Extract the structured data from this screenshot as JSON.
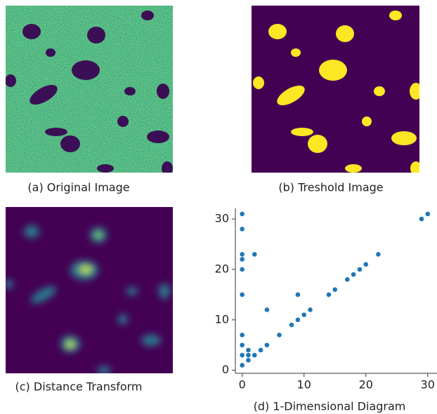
{
  "figure": {
    "captions": [
      "(a) Original Image",
      "(b) Treshold Image",
      "(c) Distance Transform",
      "(d) 1-Dimensional Diagram"
    ]
  },
  "chart_data": {
    "type": "scatter",
    "color": "#1f77b4",
    "x": [
      0,
      0,
      0,
      0,
      0,
      0,
      0,
      0,
      0,
      0,
      2,
      4,
      1,
      1,
      1,
      2,
      3,
      4,
      6,
      8,
      9,
      9,
      10,
      11,
      14,
      15,
      17,
      18,
      19,
      20,
      22,
      29,
      30
    ],
    "values": [
      31,
      28,
      23,
      22,
      20,
      15,
      7,
      5,
      3,
      1,
      23,
      12,
      4,
      3,
      2,
      3,
      4,
      5,
      7,
      9,
      10,
      15,
      11,
      12,
      15,
      16,
      18,
      19,
      20,
      21,
      23,
      30,
      31
    ],
    "xlim": [
      -1.1,
      31.5
    ],
    "ylim": [
      -0.6,
      32.1
    ],
    "xticks": [
      0,
      10,
      20,
      30
    ],
    "yticks": [
      0,
      10,
      20,
      30
    ]
  }
}
